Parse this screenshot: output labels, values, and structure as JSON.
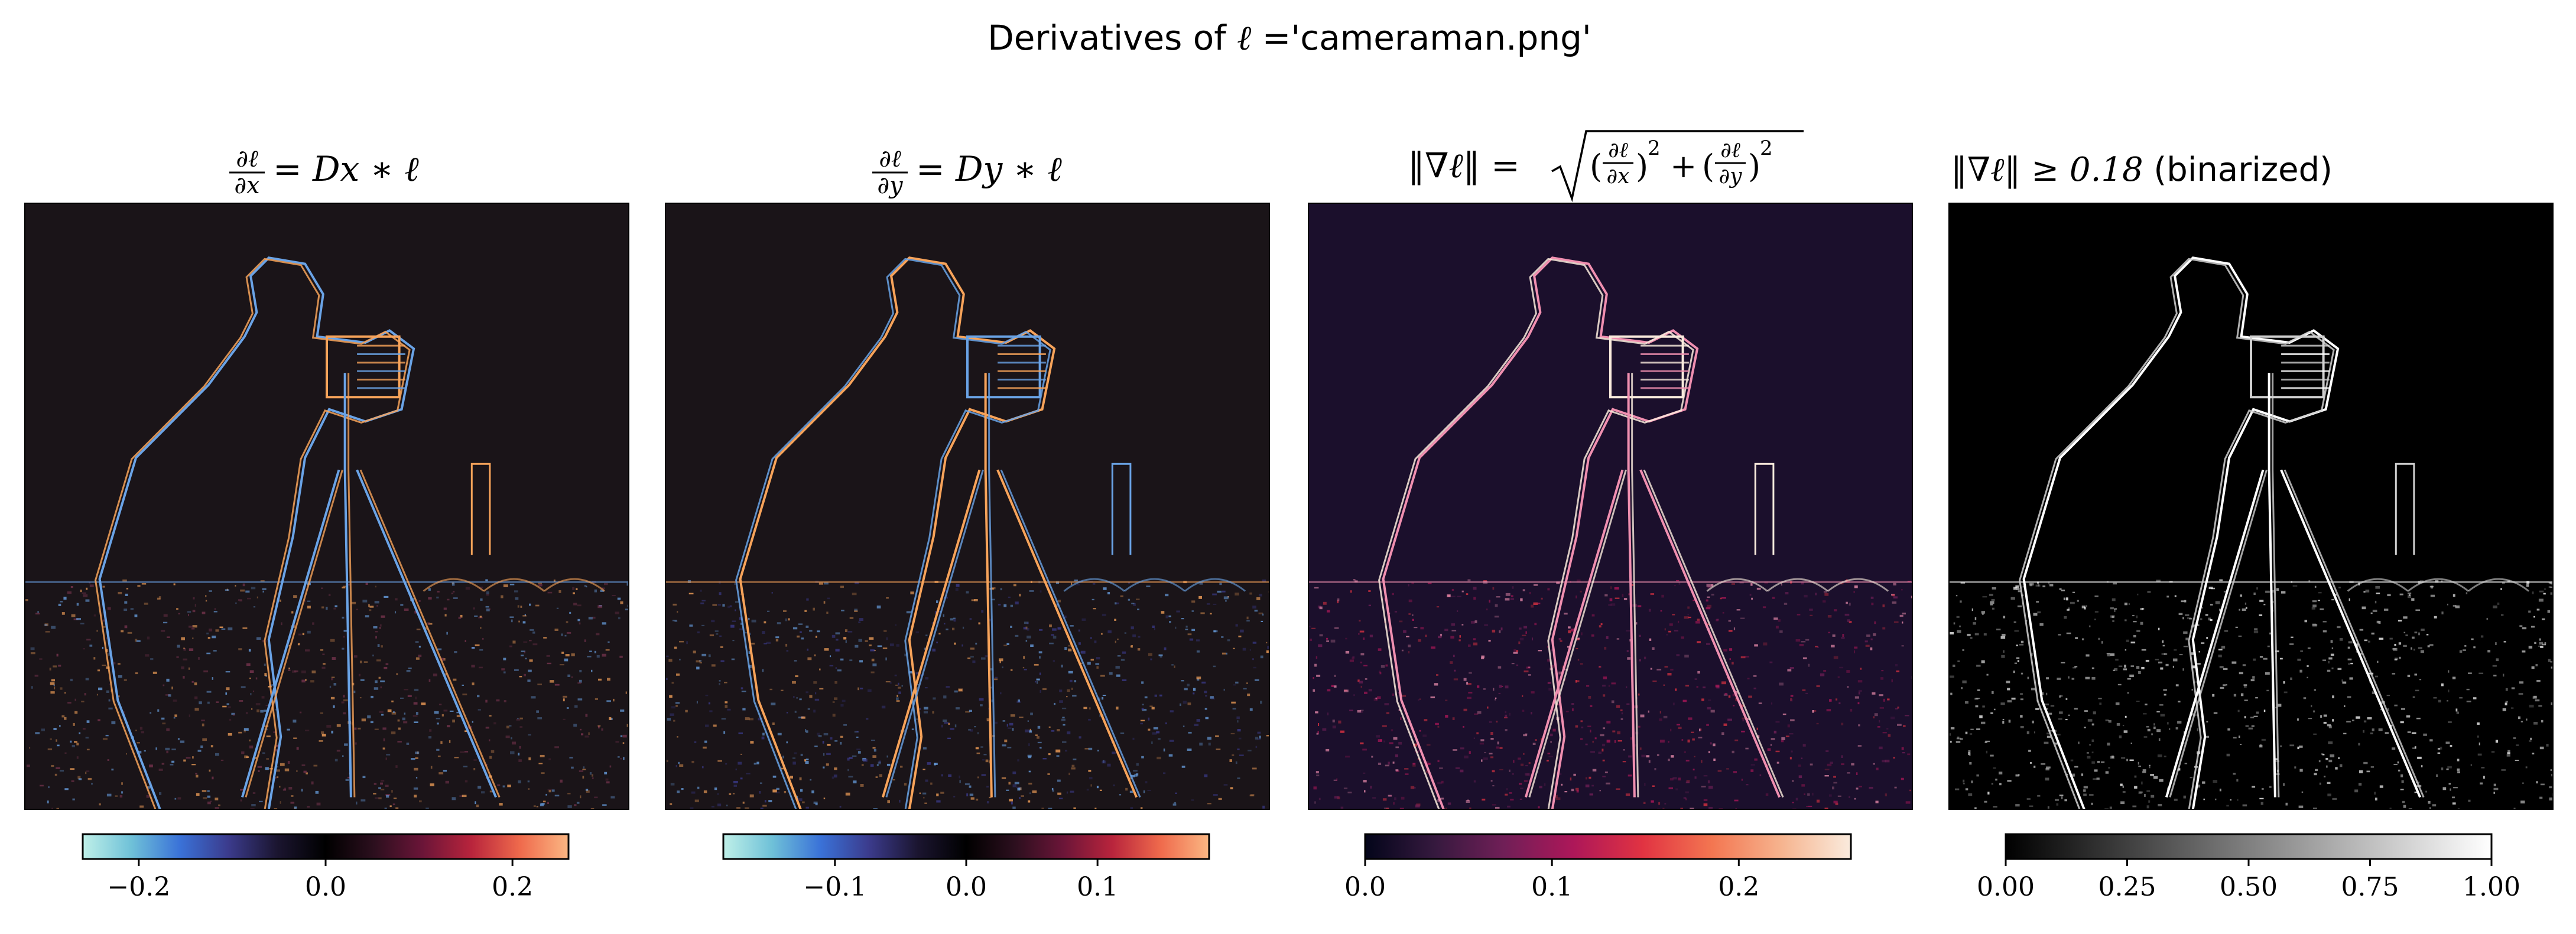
{
  "figure": {
    "suptitle_prefix": "Derivatives of ",
    "suptitle_symbol": "ℓ",
    "suptitle_suffix": " ='cameraman.png'"
  },
  "colors": {
    "background": "#ffffff",
    "image_dark": "#1a1418",
    "edge_blue": "#6aa3e6",
    "edge_orange": "#f7a35a",
    "edge_pink": "#f08fb0",
    "edge_white": "#ffffff",
    "cmap_icefire": [
      "#bff0e8",
      "#6fc1d8",
      "#3a72d8",
      "#3b3b8c",
      "#1b1530",
      "#000000",
      "#2c0f1e",
      "#6b1538",
      "#b8243c",
      "#ef6a4c",
      "#fbb783"
    ],
    "cmap_rocket": [
      "#03051a",
      "#35193e",
      "#701f57",
      "#ad1759",
      "#e13342",
      "#f37651",
      "#f6b48f",
      "#faebdd"
    ],
    "cmap_gray": [
      "#000000",
      "#ffffff"
    ]
  },
  "chart_data": [
    {
      "type": "heatmap",
      "title": "∂ℓ/∂x = Dx ∗ ℓ",
      "title_parts": {
        "num": "∂ℓ",
        "den": "∂x",
        "rest": "= Dx ∗ ℓ"
      },
      "image": "horizontal derivative of cameraman.png",
      "colormap": "icefire",
      "colorbar_range": [
        -0.26,
        0.26
      ],
      "colorbar_ticks": [
        -0.2,
        0.0,
        0.2
      ],
      "colorbar_tick_labels": [
        "−0.2",
        "0.0",
        "0.2"
      ]
    },
    {
      "type": "heatmap",
      "title": "∂ℓ/∂y = Dy ∗ ℓ",
      "title_parts": {
        "num": "∂ℓ",
        "den": "∂y",
        "rest": "= Dy ∗ ℓ"
      },
      "image": "vertical derivative of cameraman.png",
      "colormap": "icefire",
      "colorbar_range": [
        -0.185,
        0.185
      ],
      "colorbar_ticks": [
        -0.1,
        0.0,
        0.1
      ],
      "colorbar_tick_labels": [
        "−0.1",
        "0.0",
        "0.1"
      ]
    },
    {
      "type": "heatmap",
      "title": "‖∇ℓ‖ = √((∂ℓ/∂x)² + (∂ℓ/∂y)²)",
      "title_parts": {
        "lhs": "‖∇ℓ‖ =",
        "open": "(",
        "t1num": "∂ℓ",
        "t1den": "∂x",
        "plus": "+",
        "t2num": "∂ℓ",
        "t2den": "∂y",
        "sq": "2"
      },
      "image": "gradient magnitude of cameraman.png",
      "colormap": "rocket",
      "colorbar_range": [
        0.0,
        0.26
      ],
      "colorbar_ticks": [
        0.0,
        0.1,
        0.2
      ],
      "colorbar_tick_labels": [
        "0.0",
        "0.1",
        "0.2"
      ]
    },
    {
      "type": "heatmap",
      "title": "‖∇ℓ‖ ≥ 0.18 (binarized)",
      "title_parts": {
        "math": "‖∇ℓ‖ ≥ 0.18",
        "text": " (binarized)"
      },
      "image": "binarized gradient magnitude of cameraman.png",
      "colormap": "gray",
      "colorbar_range": [
        0.0,
        1.0
      ],
      "colorbar_ticks": [
        0.0,
        0.25,
        0.5,
        0.75,
        1.0
      ],
      "colorbar_tick_labels": [
        "0.00",
        "0.25",
        "0.50",
        "0.75",
        "1.00"
      ]
    }
  ]
}
